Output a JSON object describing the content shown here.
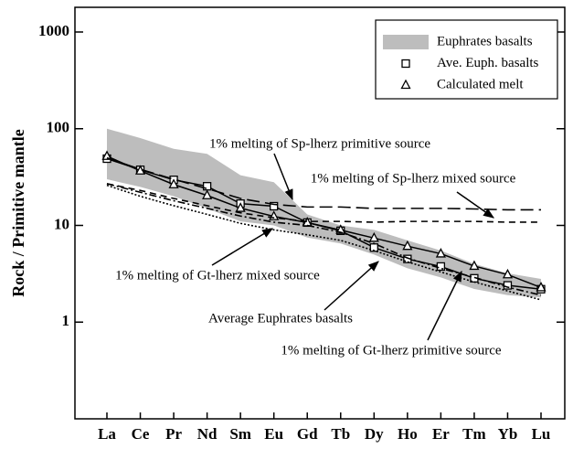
{
  "chart_data": {
    "type": "line",
    "log_y": true,
    "y_label": "Rock / Primitive mantle",
    "categories": [
      "La",
      "Ce",
      "Pr",
      "Nd",
      "Sm",
      "Eu",
      "Gd",
      "Tb",
      "Dy",
      "Ho",
      "Er",
      "Tm",
      "Yb",
      "Lu"
    ],
    "ylim": [
      0.1,
      1800
    ],
    "yticks": [
      1,
      10,
      100,
      1000
    ],
    "band": {
      "name": "Euphrates basalts",
      "color": "#bdbdbd",
      "upper": [
        100,
        80,
        62,
        55,
        33,
        28,
        13,
        10,
        9,
        7,
        5.5,
        4,
        3.2,
        2.8
      ],
      "lower": [
        30,
        25,
        20,
        15,
        11,
        10,
        7.5,
        6.5,
        5,
        3.6,
        2.9,
        2.2,
        1.9,
        1.8
      ]
    },
    "series": [
      {
        "name": "Ave. Euph. basalts",
        "marker": "square",
        "color": "#000000",
        "legend": true,
        "values": [
          49,
          37.6,
          29.6,
          25.4,
          16.8,
          15.8,
          10.7,
          8.8,
          5.9,
          4.5,
          3.76,
          2.84,
          2.4,
          2.19
        ]
      },
      {
        "name": "Calculated melt",
        "marker": "triangle",
        "color": "#000000",
        "legend": true,
        "values": [
          52,
          36.7,
          26.5,
          20.4,
          15.1,
          12.4,
          10.7,
          8.95,
          7.4,
          6.1,
          5.1,
          3.8,
          3.1,
          2.28
        ]
      },
      {
        "name": "1% melting of Sp-lherz primitive source",
        "color": "#000000",
        "legend": false,
        "values": [
          50,
          38,
          30,
          24,
          19,
          16.5,
          15.5,
          15.5,
          15,
          15,
          15,
          14.8,
          14.5,
          14.5
        ]
      },
      {
        "name": "1% melting of Sp-lherz mixed source",
        "color": "#000000",
        "legend": false,
        "values": [
          27,
          23,
          19,
          16,
          13.5,
          12,
          11,
          11,
          10.8,
          11,
          11,
          11,
          10.8,
          10.8
        ]
      },
      {
        "name": "1% melting of Gt-lherz mixed source",
        "color": "#000000",
        "legend": false,
        "values": [
          27,
          22,
          18,
          15,
          12.5,
          10.8,
          10,
          8.5,
          6.5,
          4.6,
          3.6,
          2.9,
          2.3,
          1.9
        ]
      },
      {
        "name": "1% melting of Gt-lherz primitive source",
        "color": "#000000",
        "legend": false,
        "values": [
          26,
          20,
          16,
          13,
          10.5,
          9,
          8,
          7,
          5.5,
          4.2,
          3.3,
          2.6,
          2.1,
          1.7
        ]
      }
    ],
    "annotations": [
      "Average Euphrates basalts"
    ]
  }
}
